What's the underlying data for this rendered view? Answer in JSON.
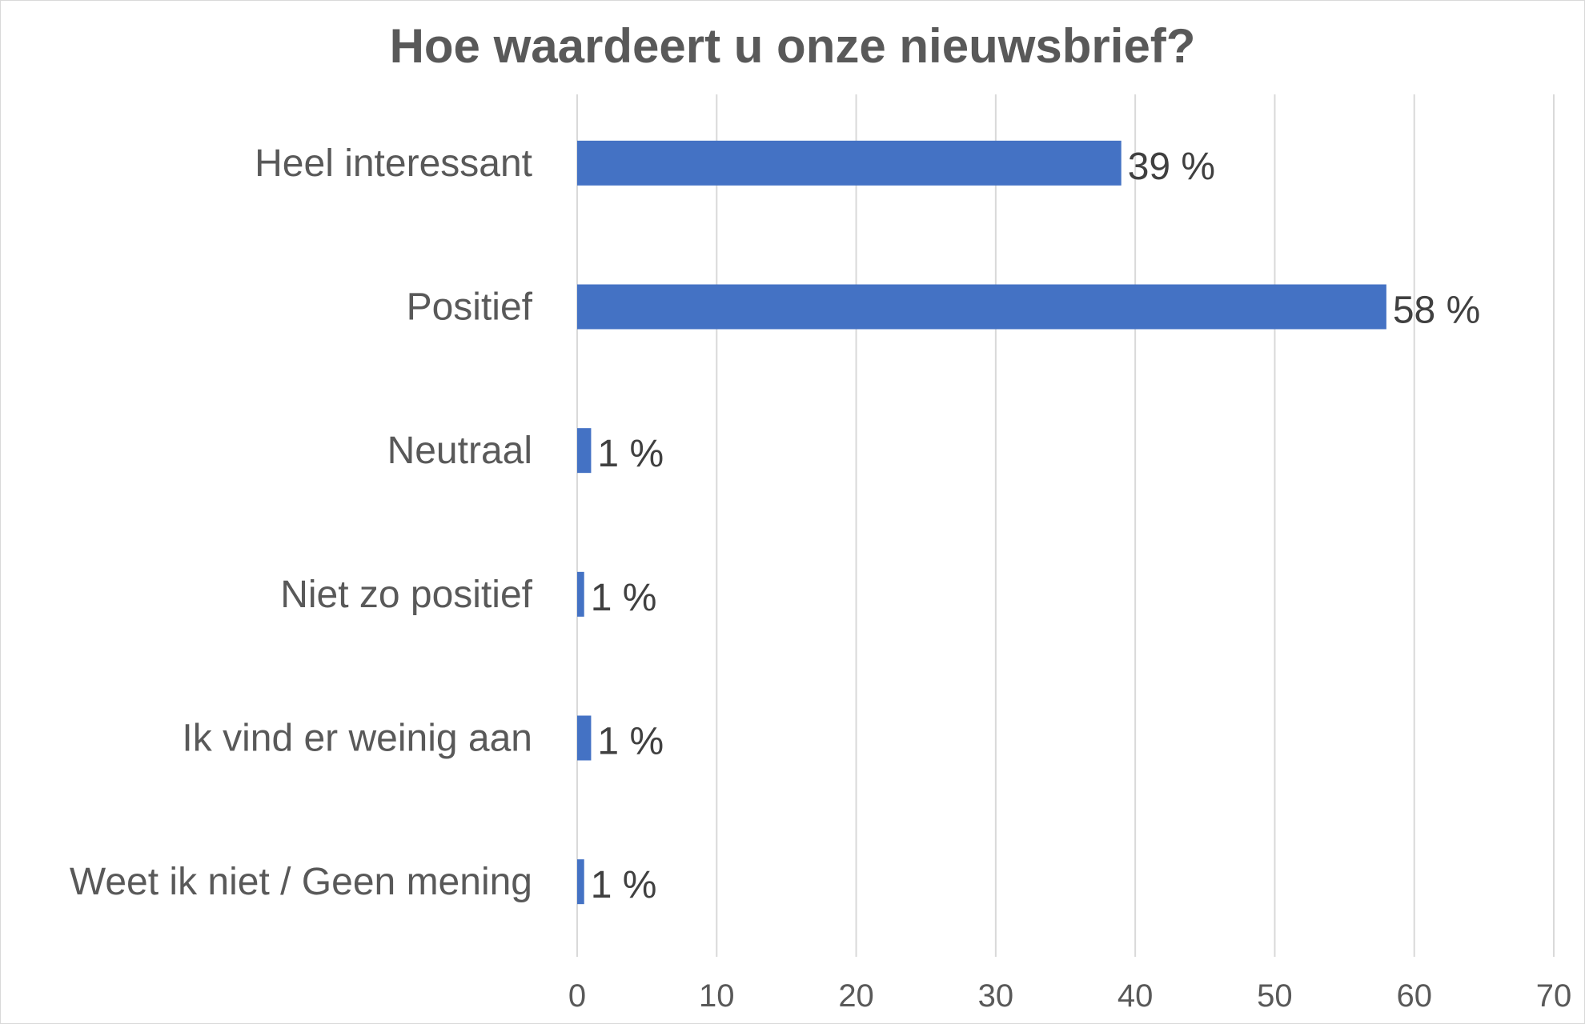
{
  "chart_data": {
    "type": "bar",
    "orientation": "horizontal",
    "title": "Hoe waardeert u onze nieuwsbrief?",
    "categories": [
      "Heel interessant",
      "Positief",
      "Neutraal",
      "Niet zo positief",
      "Ik vind er weinig aan",
      "Weet ik niet / Geen mening"
    ],
    "values": [
      39,
      58,
      1,
      0.5,
      1,
      0.5
    ],
    "data_labels": [
      "39 %",
      "58 %",
      "1 %",
      "1 %",
      "1 %",
      "1 %"
    ],
    "xlim": [
      0,
      70
    ],
    "xticks": [
      "0",
      "10",
      "20",
      "30",
      "40",
      "50",
      "60",
      "70"
    ],
    "grid": true,
    "legend": "none",
    "colors": {
      "bar": "#4472C4",
      "grid": "#d9d9d9",
      "text": "#595959"
    }
  }
}
